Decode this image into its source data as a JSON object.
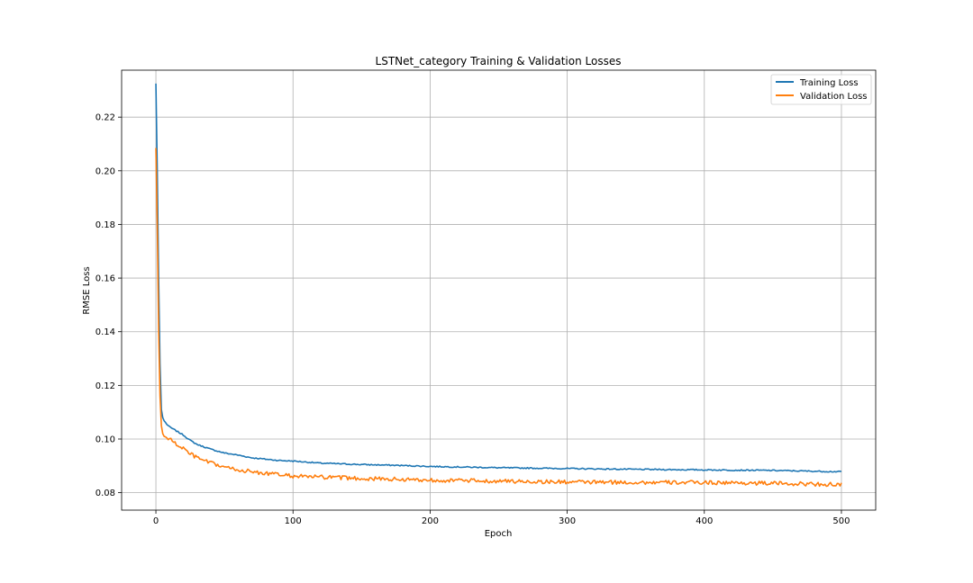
{
  "chart_data": {
    "type": "line",
    "title": "LSTNet_category Training & Validation Losses",
    "xlabel": "Epoch",
    "ylabel": "RMSE Loss",
    "xlim": [
      -25,
      525
    ],
    "ylim": [
      0.0735,
      0.2375
    ],
    "xticks": [
      0,
      100,
      200,
      300,
      400,
      500
    ],
    "xtick_labels": [
      "0",
      "100",
      "200",
      "300",
      "400",
      "500"
    ],
    "yticks": [
      0.08,
      0.1,
      0.12,
      0.14,
      0.16,
      0.18,
      0.2,
      0.22
    ],
    "ytick_labels": [
      "0.08",
      "0.10",
      "0.12",
      "0.14",
      "0.16",
      "0.18",
      "0.20",
      "0.22"
    ],
    "grid": true,
    "legend_position": "top-right",
    "series": [
      {
        "name": "Training Loss",
        "color": "#1f77b4",
        "x": [
          0,
          1,
          2,
          3,
          4,
          5,
          6,
          8,
          10,
          15,
          20,
          25,
          30,
          40,
          50,
          60,
          70,
          80,
          90,
          100,
          120,
          150,
          175,
          200,
          250,
          300,
          350,
          400,
          450,
          500
        ],
        "values": [
          0.2325,
          0.2,
          0.16,
          0.128,
          0.111,
          0.108,
          0.1068,
          0.1055,
          0.1045,
          0.103,
          0.1015,
          0.0995,
          0.098,
          0.0962,
          0.0948,
          0.094,
          0.093,
          0.0925,
          0.092,
          0.0918,
          0.091,
          0.0905,
          0.0902,
          0.0898,
          0.0893,
          0.089,
          0.0887,
          0.0885,
          0.0883,
          0.0878
        ]
      },
      {
        "name": "Validation Loss",
        "color": "#ff7f0e",
        "x": [
          0,
          1,
          2,
          3,
          4,
          5,
          6,
          8,
          10,
          15,
          20,
          25,
          30,
          40,
          50,
          60,
          70,
          80,
          90,
          100,
          120,
          150,
          175,
          200,
          250,
          300,
          350,
          400,
          450,
          500
        ],
        "values": [
          0.2085,
          0.18,
          0.14,
          0.116,
          0.105,
          0.102,
          0.101,
          0.1005,
          0.1,
          0.098,
          0.0965,
          0.0945,
          0.093,
          0.091,
          0.0895,
          0.0885,
          0.0878,
          0.0872,
          0.0867,
          0.0862,
          0.0858,
          0.0853,
          0.085,
          0.0847,
          0.0843,
          0.084,
          0.0838,
          0.0838,
          0.0835,
          0.083
        ]
      }
    ]
  }
}
